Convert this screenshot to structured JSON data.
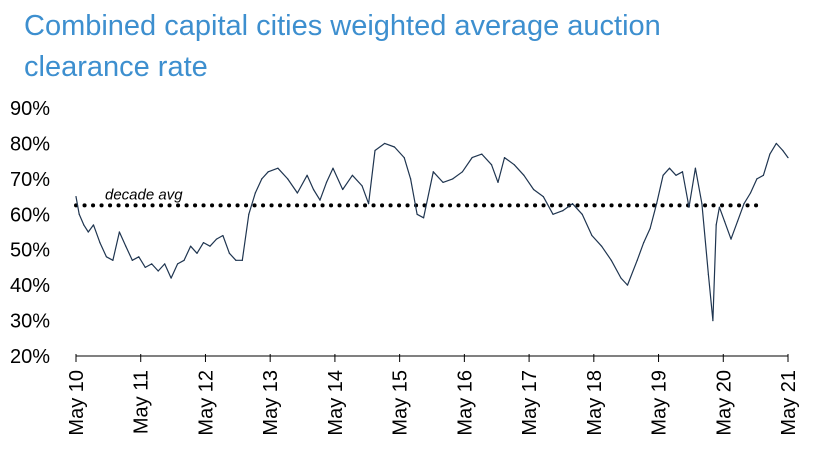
{
  "chart_data": {
    "type": "line",
    "title": "Combined capital cities weighted average auction clearance rate",
    "xlabel": "",
    "ylabel": "",
    "ylim": [
      20,
      90
    ],
    "y_ticks": [
      "90%",
      "80%",
      "70%",
      "60%",
      "50%",
      "40%",
      "30%",
      "20%"
    ],
    "y_tick_values": [
      90,
      80,
      70,
      60,
      50,
      40,
      30,
      20
    ],
    "x_ticks": [
      "May 10",
      "May 11",
      "May 12",
      "May 13",
      "May 14",
      "May 15",
      "May 16",
      "May 17",
      "May 18",
      "May 19",
      "May 20",
      "May 21"
    ],
    "x_tick_values": [
      2010.33,
      2011.33,
      2012.33,
      2013.33,
      2014.33,
      2015.33,
      2016.33,
      2017.33,
      2018.33,
      2019.33,
      2020.33,
      2021.33
    ],
    "xlim": [
      2010.33,
      2021.33
    ],
    "grid": false,
    "legend": "none",
    "colors": {
      "series": "#1f3550",
      "reference": "#000000",
      "title": "#3d8fcf"
    },
    "reference_line": {
      "label": "decade avg",
      "value": 62.5,
      "style": "dotted"
    },
    "series": [
      {
        "x": [
          2010.33,
          2010.38,
          2010.45,
          2010.52,
          2010.6,
          2010.7,
          2010.8,
          2010.9,
          2011.0,
          2011.1,
          2011.2,
          2011.3,
          2011.4,
          2011.5,
          2011.6,
          2011.7,
          2011.8,
          2011.9,
          2012.0,
          2012.1,
          2012.2,
          2012.3,
          2012.4,
          2012.5,
          2012.6,
          2012.7,
          2012.8,
          2012.9,
          2013.0,
          2013.1,
          2013.2,
          2013.3,
          2013.45,
          2013.6,
          2013.75,
          2013.9,
          2014.0,
          2014.1,
          2014.2,
          2014.3,
          2014.45,
          2014.6,
          2014.75,
          2014.85,
          2014.95,
          2015.1,
          2015.25,
          2015.4,
          2015.5,
          2015.6,
          2015.7,
          2015.85,
          2016.0,
          2016.15,
          2016.3,
          2016.45,
          2016.6,
          2016.75,
          2016.85,
          2016.95,
          2017.1,
          2017.25,
          2017.4,
          2017.55,
          2017.7,
          2017.85,
          2018.0,
          2018.15,
          2018.3,
          2018.45,
          2018.6,
          2018.75,
          2018.85,
          2019.0,
          2019.1,
          2019.2,
          2019.3,
          2019.4,
          2019.5,
          2019.6,
          2019.7,
          2019.8,
          2019.9,
          2020.0,
          2020.1,
          2020.17,
          2020.22,
          2020.27,
          2020.35,
          2020.45,
          2020.55,
          2020.65,
          2020.75,
          2020.85,
          2020.95,
          2021.05,
          2021.15,
          2021.25,
          2021.33
        ],
        "values": [
          65,
          60,
          57,
          55,
          57,
          52,
          48,
          47,
          55,
          51,
          47,
          48,
          45,
          46,
          44,
          46,
          42,
          46,
          47,
          51,
          49,
          52,
          51,
          53,
          54,
          49,
          47,
          47,
          60,
          66,
          70,
          72,
          73,
          70,
          66,
          71,
          67,
          64,
          69,
          73,
          67,
          71,
          68,
          63,
          78,
          80,
          79,
          76,
          70,
          60,
          59,
          72,
          69,
          70,
          72,
          76,
          77,
          74,
          69,
          76,
          74,
          71,
          67,
          65,
          60,
          61,
          63,
          60,
          54,
          51,
          47,
          42,
          40,
          47,
          52,
          56,
          63,
          71,
          73,
          71,
          72,
          62,
          73,
          63,
          43,
          30,
          57,
          62,
          58,
          53,
          58,
          63,
          66,
          70,
          71,
          77,
          80,
          78,
          76
        ]
      }
    ]
  }
}
